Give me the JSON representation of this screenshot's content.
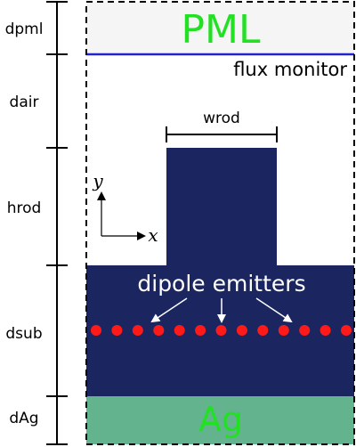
{
  "colors": {
    "pml_fill": "#f4f5f4",
    "pml_text": "#22e022",
    "substrate": "#1b2560",
    "ag_fill": "#63b38f",
    "ag_text": "#22e022",
    "monitor_line": "#2323cc",
    "dipole": "#ff1a1a",
    "arrow": "#ffffff"
  },
  "regions": {
    "pml": "PML",
    "ag": "Ag",
    "monitor": "flux monitor",
    "wrod": "wrod",
    "dipoles": "dipole emitters"
  },
  "dimensions": {
    "dpml": "dpml",
    "dair": "dair",
    "hrod": "hrod",
    "dsub": "dsub",
    "dAg": "dAg"
  },
  "axes": {
    "y": "y",
    "x": "x"
  },
  "dipole_count": 13
}
